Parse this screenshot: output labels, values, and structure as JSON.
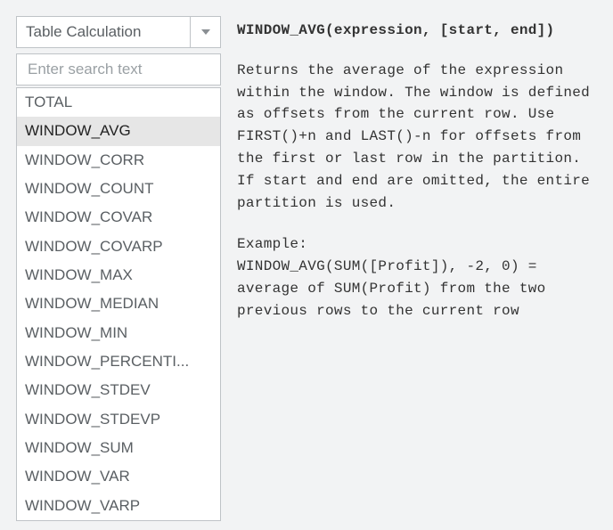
{
  "dropdown": {
    "label": "Table Calculation"
  },
  "search": {
    "placeholder": "Enter search text",
    "value": ""
  },
  "functions": {
    "selected_index": 1,
    "items": [
      "TOTAL",
      "WINDOW_AVG",
      "WINDOW_CORR",
      "WINDOW_COUNT",
      "WINDOW_COVAR",
      "WINDOW_COVARP",
      "WINDOW_MAX",
      "WINDOW_MEDIAN",
      "WINDOW_MIN",
      "WINDOW_PERCENTILE",
      "WINDOW_STDEV",
      "WINDOW_STDEVP",
      "WINDOW_SUM",
      "WINDOW_VAR",
      "WINDOW_VARP"
    ]
  },
  "doc": {
    "signature": "WINDOW_AVG(expression, [start, end])",
    "description": "Returns the average of the expression within the window. The window is defined as offsets from the current row. Use FIRST()+n and LAST()-n for offsets from the first or last row in the partition.  If start and end are omitted, the entire partition is used.",
    "example_label": "Example:",
    "example": "WINDOW_AVG(SUM([Profit]), -2, 0) = average of SUM(Profit) from the two previous rows to the current row"
  }
}
